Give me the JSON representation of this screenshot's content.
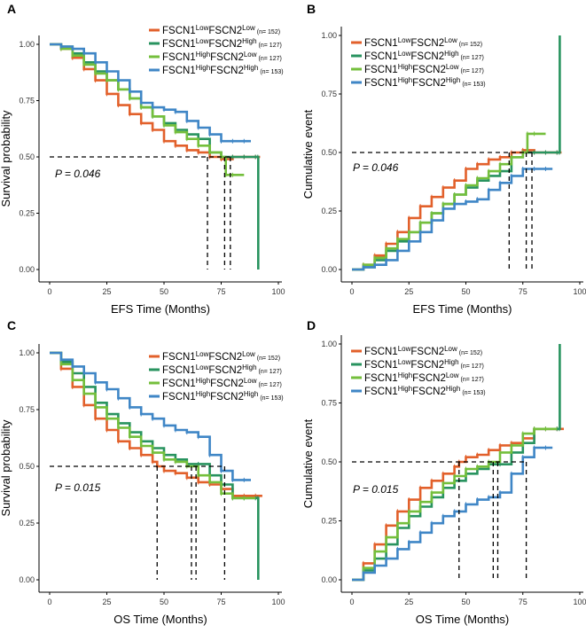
{
  "chart_data": [
    {
      "panel": "A",
      "type": "line",
      "kind": "survival",
      "xlabel": "EFS Time (Months)",
      "ylabel": "Survival probability",
      "xlim": [
        0,
        100
      ],
      "ylim": [
        0,
        1
      ],
      "xticks": [
        "0",
        "25",
        "50",
        "75",
        "100"
      ],
      "yticks": [
        "0.00",
        "0.25",
        "0.50",
        "0.75",
        "1.00"
      ],
      "p_value": "P = 0.046",
      "legend_position": "top-right",
      "median_guides": [
        69,
        76.5,
        79
      ],
      "series": [
        {
          "n": "(n= 152)",
          "x": [
            0,
            5,
            10,
            15,
            20,
            25,
            30,
            35,
            40,
            45,
            50,
            55,
            60,
            65,
            70,
            75,
            80,
            85,
            90,
            92
          ],
          "values": [
            1.0,
            0.98,
            0.94,
            0.89,
            0.84,
            0.78,
            0.73,
            0.69,
            0.65,
            0.62,
            0.57,
            0.55,
            0.53,
            0.52,
            0.5,
            0.49,
            0.5,
            0.5,
            0.5,
            0.5
          ]
        },
        {
          "n": "(n= 127)",
          "x": [
            0,
            5,
            10,
            15,
            20,
            25,
            30,
            35,
            40,
            45,
            50,
            55,
            60,
            65,
            70,
            75,
            80,
            85,
            90,
            91,
            91.2
          ],
          "values": [
            1.0,
            0.99,
            0.96,
            0.92,
            0.88,
            0.84,
            0.8,
            0.76,
            0.72,
            0.68,
            0.65,
            0.62,
            0.6,
            0.58,
            0.52,
            0.5,
            0.5,
            0.5,
            0.5,
            0.5,
            0.0
          ]
        },
        {
          "n": "(n= 127)",
          "x": [
            0,
            5,
            10,
            15,
            20,
            25,
            30,
            35,
            40,
            45,
            50,
            55,
            60,
            65,
            70,
            75,
            77,
            80,
            85
          ],
          "values": [
            1.0,
            0.98,
            0.95,
            0.91,
            0.87,
            0.84,
            0.8,
            0.76,
            0.72,
            0.68,
            0.64,
            0.61,
            0.58,
            0.55,
            0.52,
            0.5,
            0.42,
            0.42,
            0.42
          ]
        },
        {
          "n": "(n= 153)",
          "x": [
            0,
            5,
            10,
            15,
            20,
            25,
            30,
            35,
            40,
            45,
            50,
            55,
            60,
            65,
            70,
            75,
            80,
            85,
            88
          ],
          "values": [
            1.0,
            0.99,
            0.98,
            0.96,
            0.92,
            0.88,
            0.84,
            0.79,
            0.74,
            0.72,
            0.71,
            0.7,
            0.66,
            0.63,
            0.6,
            0.57,
            0.57,
            0.57,
            0.57
          ]
        }
      ]
    },
    {
      "panel": "B",
      "type": "line",
      "kind": "cumulative",
      "xlabel": "EFS Time (Months)",
      "ylabel": "Cumulative event",
      "xlim": [
        0,
        100
      ],
      "ylim": [
        0,
        1
      ],
      "xticks": [
        "0",
        "25",
        "50",
        "75",
        "100"
      ],
      "yticks": [
        "0.00",
        "0.25",
        "0.50",
        "0.75",
        "1.00"
      ],
      "p_value": "P = 0.046",
      "legend_position": "top-left",
      "median_guides": [
        69,
        76.5,
        79
      ],
      "series": [
        {
          "n": "(n= 152)",
          "x": [
            0,
            5,
            10,
            15,
            20,
            25,
            30,
            35,
            40,
            45,
            50,
            55,
            60,
            65,
            70,
            75,
            80,
            85,
            90,
            92
          ],
          "values": [
            0.0,
            0.02,
            0.06,
            0.11,
            0.16,
            0.22,
            0.27,
            0.31,
            0.35,
            0.38,
            0.43,
            0.45,
            0.47,
            0.48,
            0.5,
            0.51,
            0.5,
            0.5,
            0.5,
            0.5
          ]
        },
        {
          "n": "(n= 127)",
          "x": [
            0,
            5,
            10,
            15,
            20,
            25,
            30,
            35,
            40,
            45,
            50,
            55,
            60,
            65,
            70,
            75,
            80,
            85,
            90,
            91,
            91.2
          ],
          "values": [
            0.0,
            0.01,
            0.04,
            0.08,
            0.12,
            0.16,
            0.2,
            0.24,
            0.28,
            0.32,
            0.35,
            0.38,
            0.4,
            0.42,
            0.48,
            0.5,
            0.5,
            0.5,
            0.5,
            0.5,
            1.0
          ]
        },
        {
          "n": "(n= 127)",
          "x": [
            0,
            5,
            10,
            15,
            20,
            25,
            30,
            35,
            40,
            45,
            50,
            55,
            60,
            65,
            70,
            75,
            77,
            80,
            85
          ],
          "values": [
            0.0,
            0.02,
            0.05,
            0.09,
            0.13,
            0.16,
            0.2,
            0.24,
            0.28,
            0.32,
            0.36,
            0.39,
            0.42,
            0.45,
            0.48,
            0.5,
            0.58,
            0.58,
            0.58
          ]
        },
        {
          "n": "(n= 153)",
          "x": [
            0,
            5,
            10,
            15,
            20,
            25,
            30,
            35,
            40,
            45,
            50,
            55,
            60,
            65,
            70,
            75,
            80,
            85,
            88
          ],
          "values": [
            0.0,
            0.01,
            0.02,
            0.04,
            0.08,
            0.12,
            0.16,
            0.21,
            0.26,
            0.28,
            0.29,
            0.3,
            0.34,
            0.37,
            0.4,
            0.43,
            0.43,
            0.43,
            0.43
          ]
        }
      ]
    },
    {
      "panel": "C",
      "type": "line",
      "kind": "survival",
      "xlabel": "OS Time (Months)",
      "ylabel": "Survival probability",
      "xlim": [
        0,
        100
      ],
      "ylim": [
        0,
        1
      ],
      "xticks": [
        "0",
        "25",
        "50",
        "75",
        "100"
      ],
      "yticks": [
        "0.00",
        "0.25",
        "0.50",
        "0.75",
        "1.00"
      ],
      "p_value": "P = 0.015",
      "legend_position": "top-right",
      "median_guides": [
        47,
        62,
        64,
        76.5
      ],
      "series": [
        {
          "n": "(n= 152)",
          "x": [
            0,
            5,
            10,
            15,
            20,
            25,
            30,
            35,
            40,
            45,
            47,
            50,
            55,
            60,
            65,
            70,
            75,
            80,
            85,
            90,
            93
          ],
          "values": [
            1.0,
            0.93,
            0.85,
            0.77,
            0.71,
            0.66,
            0.61,
            0.58,
            0.55,
            0.52,
            0.5,
            0.48,
            0.47,
            0.45,
            0.43,
            0.42,
            0.4,
            0.37,
            0.37,
            0.37,
            0.37
          ]
        },
        {
          "n": "(n= 127)",
          "x": [
            0,
            5,
            10,
            15,
            20,
            25,
            30,
            35,
            40,
            45,
            50,
            55,
            60,
            65,
            70,
            75,
            80,
            85,
            90,
            91,
            91.2
          ],
          "values": [
            1.0,
            0.96,
            0.91,
            0.85,
            0.78,
            0.73,
            0.69,
            0.65,
            0.61,
            0.58,
            0.55,
            0.53,
            0.51,
            0.51,
            0.46,
            0.42,
            0.36,
            0.36,
            0.36,
            0.36,
            0.0
          ]
        },
        {
          "n": "(n= 127)",
          "x": [
            0,
            5,
            10,
            15,
            20,
            25,
            30,
            35,
            40,
            45,
            50,
            55,
            60,
            65,
            70,
            75,
            80,
            85,
            90
          ],
          "values": [
            1.0,
            0.95,
            0.88,
            0.82,
            0.76,
            0.71,
            0.67,
            0.63,
            0.59,
            0.56,
            0.53,
            0.52,
            0.5,
            0.46,
            0.43,
            0.38,
            0.36,
            0.36,
            0.36
          ]
        },
        {
          "n": "(n= 153)",
          "x": [
            0,
            5,
            10,
            15,
            20,
            25,
            30,
            35,
            40,
            45,
            50,
            55,
            60,
            65,
            70,
            75,
            80,
            85,
            88
          ],
          "values": [
            1.0,
            0.97,
            0.94,
            0.91,
            0.87,
            0.84,
            0.8,
            0.76,
            0.73,
            0.71,
            0.68,
            0.66,
            0.65,
            0.63,
            0.55,
            0.48,
            0.44,
            0.44,
            0.44
          ]
        }
      ]
    },
    {
      "panel": "D",
      "type": "line",
      "kind": "cumulative",
      "xlabel": "OS Time (Months)",
      "ylabel": "Cumulative event",
      "xlim": [
        0,
        100
      ],
      "ylim": [
        0,
        1
      ],
      "xticks": [
        "0",
        "25",
        "50",
        "75",
        "100"
      ],
      "yticks": [
        "0.00",
        "0.25",
        "0.50",
        "0.75",
        "1.00"
      ],
      "p_value": "P = 0.015",
      "legend_position": "top-left",
      "median_guides": [
        47,
        62,
        64,
        76.5
      ],
      "series": [
        {
          "n": "(n= 152)",
          "x": [
            0,
            5,
            10,
            15,
            20,
            25,
            30,
            35,
            40,
            45,
            47,
            50,
            55,
            60,
            65,
            70,
            75,
            80,
            85,
            90,
            93
          ],
          "values": [
            0.0,
            0.07,
            0.15,
            0.23,
            0.29,
            0.34,
            0.39,
            0.42,
            0.45,
            0.48,
            0.5,
            0.52,
            0.53,
            0.55,
            0.57,
            0.58,
            0.6,
            0.64,
            0.64,
            0.64,
            0.64
          ]
        },
        {
          "n": "(n= 127)",
          "x": [
            0,
            5,
            10,
            15,
            20,
            25,
            30,
            35,
            40,
            45,
            50,
            55,
            60,
            65,
            70,
            75,
            80,
            85,
            90,
            91,
            91.2
          ],
          "values": [
            0.0,
            0.04,
            0.09,
            0.15,
            0.22,
            0.27,
            0.31,
            0.35,
            0.39,
            0.42,
            0.45,
            0.47,
            0.49,
            0.49,
            0.54,
            0.58,
            0.64,
            0.64,
            0.64,
            0.64,
            1.0
          ]
        },
        {
          "n": "(n= 127)",
          "x": [
            0,
            5,
            10,
            15,
            20,
            25,
            30,
            35,
            40,
            45,
            50,
            55,
            60,
            65,
            70,
            75,
            80,
            85,
            90
          ],
          "values": [
            0.0,
            0.05,
            0.12,
            0.18,
            0.24,
            0.29,
            0.33,
            0.37,
            0.41,
            0.44,
            0.47,
            0.48,
            0.5,
            0.54,
            0.57,
            0.62,
            0.64,
            0.64,
            0.64
          ]
        },
        {
          "n": "(n= 153)",
          "x": [
            0,
            5,
            10,
            15,
            20,
            25,
            30,
            35,
            40,
            45,
            50,
            55,
            60,
            65,
            70,
            75,
            80,
            85,
            88
          ],
          "values": [
            0.0,
            0.03,
            0.06,
            0.09,
            0.13,
            0.16,
            0.2,
            0.24,
            0.27,
            0.29,
            0.32,
            0.34,
            0.35,
            0.37,
            0.45,
            0.52,
            0.56,
            0.56,
            0.56
          ]
        }
      ]
    }
  ],
  "legend_groups": [
    {
      "gene1": "FSCN1",
      "sup1": "Low",
      "gene2": "FSCN2",
      "sup2": "Low"
    },
    {
      "gene1": "FSCN1",
      "sup1": "Low",
      "gene2": "FSCN2",
      "sup2": "High"
    },
    {
      "gene1": "FSCN1",
      "sup1": "High",
      "gene2": "FSCN2",
      "sup2": "Low"
    },
    {
      "gene1": "FSCN1",
      "sup1": "High",
      "gene2": "FSCN2",
      "sup2": "High"
    }
  ],
  "colors": [
    "#e2602b",
    "#28935f",
    "#74bf3c",
    "#3f86c6"
  ]
}
